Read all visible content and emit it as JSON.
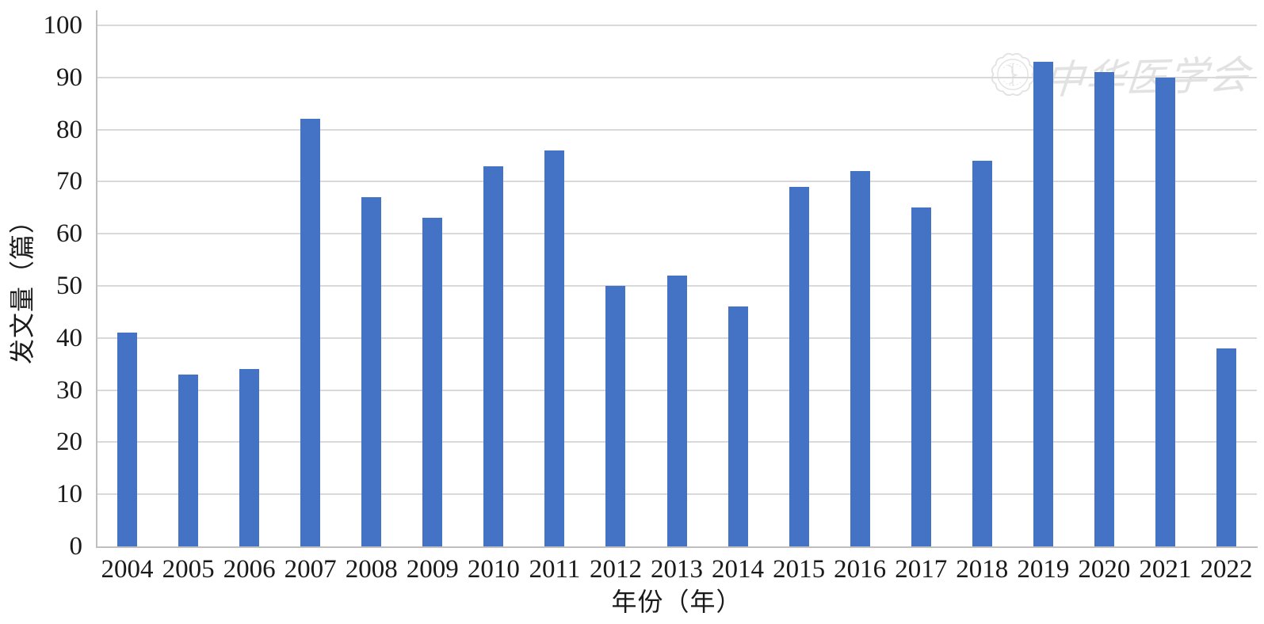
{
  "chart_data": {
    "type": "bar",
    "title": "",
    "categories": [
      "2004",
      "2005",
      "2006",
      "2007",
      "2008",
      "2009",
      "2010",
      "2011",
      "2012",
      "2013",
      "2014",
      "2015",
      "2016",
      "2017",
      "2018",
      "2019",
      "2020",
      "2021",
      "2022"
    ],
    "values": [
      41,
      33,
      34,
      82,
      67,
      63,
      73,
      76,
      50,
      52,
      46,
      69,
      72,
      65,
      74,
      93,
      91,
      90,
      38
    ],
    "xlabel": "年份（年）",
    "ylabel": "发文量（篇）",
    "ylim": [
      0,
      100
    ],
    "ytick_interval": 10,
    "yticks": [
      0,
      10,
      20,
      30,
      40,
      50,
      60,
      70,
      80,
      90,
      100
    ],
    "grid": true,
    "legend": false,
    "bar_color": "#4472C4",
    "gridline_color": "#D9D9D9",
    "axis_color": "#BFBFBF",
    "text_color": "#1a1a1a"
  },
  "watermark": {
    "text": "中华医学会",
    "logo": "chinese-medical-association-seal",
    "color": "#E2E2E2"
  }
}
